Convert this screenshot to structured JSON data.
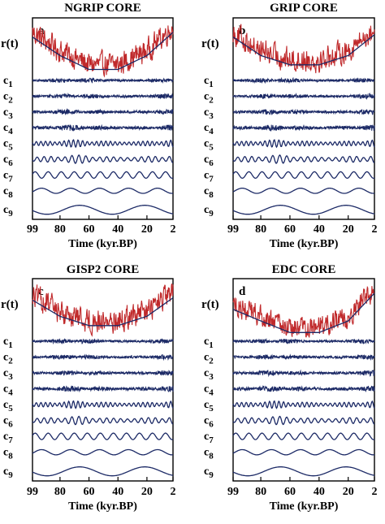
{
  "chart_data": [
    {
      "type": "line",
      "title": "NGRIP CORE",
      "panel_label": "a",
      "xlabel": "Time (kyr.BP)",
      "x_ticks": [
        "99",
        "80",
        "60",
        "40",
        "20",
        "2"
      ],
      "xlim": [
        99,
        2
      ],
      "x_reversed": true,
      "signal_label": "r(t)",
      "component_labels": [
        "c",
        "c",
        "c",
        "c",
        "c",
        "c",
        "c",
        "c",
        "c"
      ],
      "component_indices": [
        "1",
        "2",
        "3",
        "4",
        "5",
        "6",
        "7",
        "8",
        "9"
      ],
      "signal_color": "#c0292b",
      "component_color": "#1c2a66",
      "trend_curve": {
        "x": [
          99,
          80,
          60,
          40,
          20,
          2
        ],
        "level": [
          0.85,
          0.45,
          0.15,
          0.15,
          0.45,
          0.95
        ]
      },
      "signal_noise": 0.5
    },
    {
      "type": "line",
      "title": "GRIP CORE",
      "panel_label": "b",
      "xlabel": "Time (kyr.BP)",
      "x_ticks": [
        "99",
        "80",
        "60",
        "40",
        "20",
        "2"
      ],
      "xlim": [
        99,
        2
      ],
      "x_reversed": true,
      "signal_label": "r(t)",
      "component_labels": [
        "c",
        "c",
        "c",
        "c",
        "c",
        "c",
        "c",
        "c",
        "c"
      ],
      "component_indices": [
        "1",
        "2",
        "3",
        "4",
        "5",
        "6",
        "7",
        "8",
        "9"
      ],
      "signal_color": "#c0292b",
      "component_color": "#1c2a66",
      "trend_curve": {
        "x": [
          99,
          80,
          60,
          40,
          20,
          2
        ],
        "level": [
          0.85,
          0.45,
          0.25,
          0.25,
          0.45,
          0.9
        ]
      },
      "signal_noise": 0.5
    },
    {
      "type": "line",
      "title": "GISP2 CORE",
      "panel_label": "c",
      "xlabel": "Time (kyr.BP)",
      "x_ticks": [
        "99",
        "80",
        "60",
        "40",
        "20",
        "2"
      ],
      "xlim": [
        99,
        2
      ],
      "x_reversed": true,
      "signal_label": "r(t)",
      "component_labels": [
        "c",
        "c",
        "c",
        "c",
        "c",
        "c",
        "c",
        "c",
        "c"
      ],
      "component_indices": [
        "1",
        "2",
        "3",
        "4",
        "5",
        "6",
        "7",
        "8",
        "9"
      ],
      "signal_color": "#c0292b",
      "component_color": "#1c2a66",
      "trend_curve": {
        "x": [
          99,
          80,
          60,
          40,
          20,
          2
        ],
        "level": [
          0.8,
          0.45,
          0.25,
          0.25,
          0.45,
          0.85
        ]
      },
      "signal_noise": 0.5
    },
    {
      "type": "line",
      "title": "EDC CORE",
      "panel_label": "d",
      "xlabel": "Time (kyr.BP)",
      "x_ticks": [
        "99",
        "80",
        "60",
        "40",
        "20",
        "2"
      ],
      "xlim": [
        99,
        2
      ],
      "x_reversed": true,
      "signal_label": "r(t)",
      "component_labels": [
        "c",
        "c",
        "c",
        "c",
        "c",
        "c",
        "c",
        "c",
        "c"
      ],
      "component_indices": [
        "1",
        "2",
        "3",
        "4",
        "5",
        "6",
        "7",
        "8",
        "9"
      ],
      "signal_color": "#c0292b",
      "component_color": "#1c2a66",
      "trend_curve": {
        "x": [
          99,
          80,
          60,
          40,
          20,
          2
        ],
        "level": [
          0.6,
          0.35,
          0.1,
          0.1,
          0.35,
          0.95
        ]
      },
      "signal_noise": 0.45
    }
  ]
}
